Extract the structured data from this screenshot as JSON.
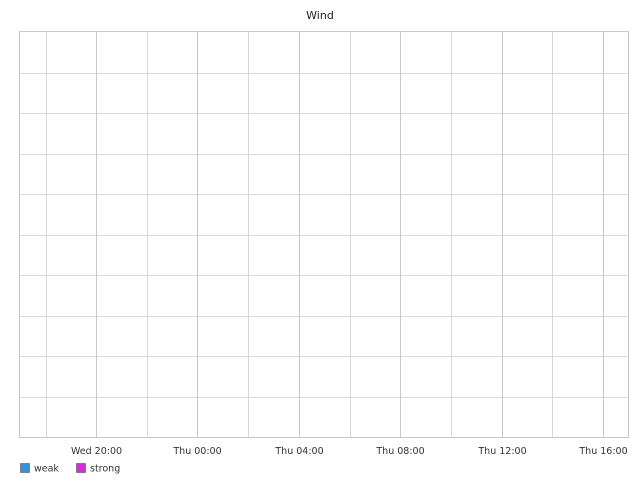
{
  "chart_data": {
    "type": "area",
    "title": "Wind",
    "xlabel": "",
    "ylabel": "",
    "x_ticks": [
      "Wed 20:00",
      "Thu 00:00",
      "Thu 04:00",
      "Thu 08:00",
      "Thu 12:00",
      "Thu 16:00"
    ],
    "series": [
      {
        "name": "weak",
        "color": "#3a8fd8",
        "values": []
      },
      {
        "name": "strong",
        "color": "#d030d8",
        "values": []
      }
    ],
    "grid": true,
    "legend_position": "bottom-left",
    "colors": {
      "grid": "#d8d8d8",
      "grid_major": "#c8c8c8",
      "frame": "#c8c8c8"
    }
  }
}
